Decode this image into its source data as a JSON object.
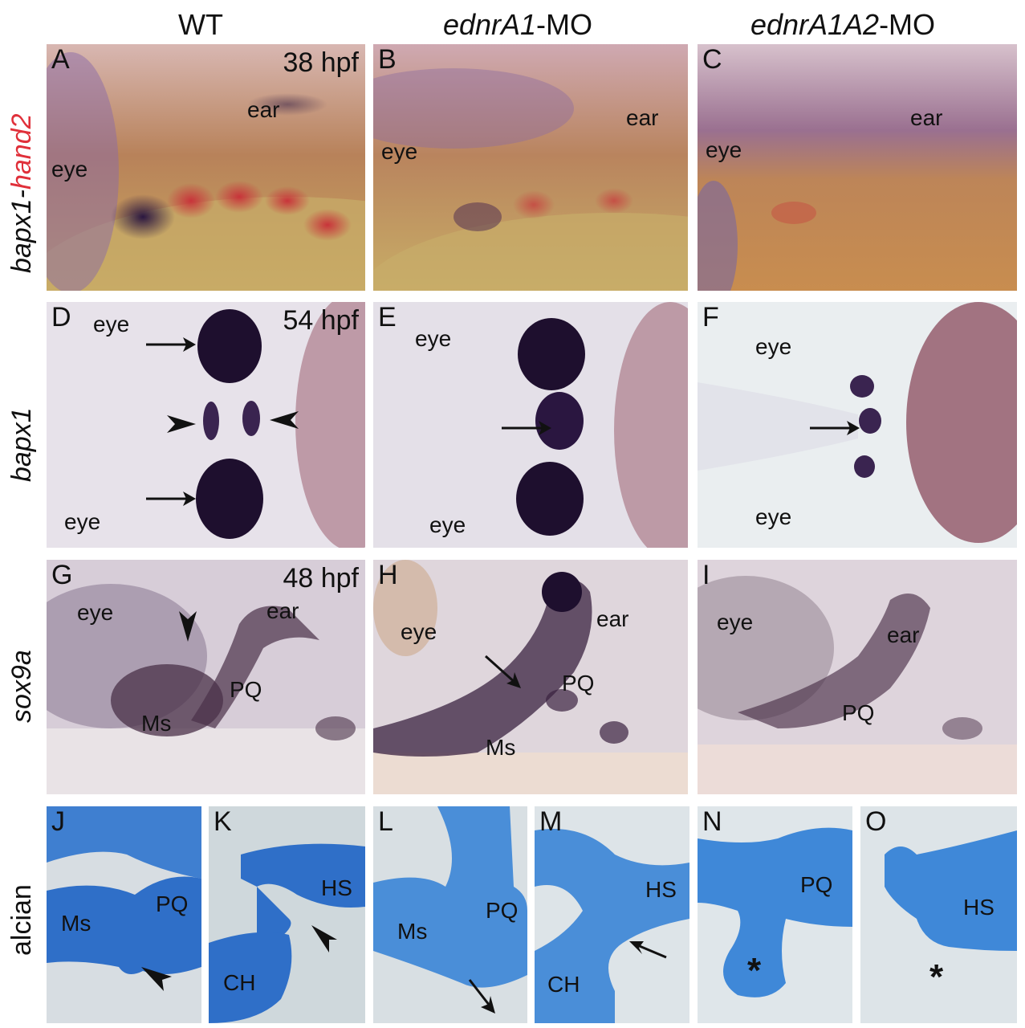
{
  "columns": {
    "wt": "WT",
    "a1_gene": "ednrA1",
    "a1_suffix": "-MO",
    "a1a2_gene": "ednrA1A2",
    "a1a2_suffix": "-MO"
  },
  "rows": {
    "row1_gene1": "bapx1-",
    "row1_gene2": "hand2",
    "row2": "bapx1",
    "row3": "sox9a",
    "row4": "alcian"
  },
  "stages": {
    "row1": "38 hpf",
    "row2": "54 hpf",
    "row3": "48 hpf"
  },
  "panels": {
    "A": {
      "label": "A",
      "eye": "eye",
      "ear": "ear"
    },
    "B": {
      "label": "B",
      "eye": "eye",
      "ear": "ear"
    },
    "C": {
      "label": "C",
      "eye": "eye",
      "ear": "ear"
    },
    "D": {
      "label": "D",
      "eye_top": "eye",
      "eye_bottom": "eye"
    },
    "E": {
      "label": "E",
      "eye_top": "eye",
      "eye_bottom": "eye"
    },
    "F": {
      "label": "F",
      "eye_top": "eye",
      "eye_bottom": "eye"
    },
    "G": {
      "label": "G",
      "eye": "eye",
      "ear": "ear",
      "pq": "PQ",
      "ms": "Ms"
    },
    "H": {
      "label": "H",
      "eye": "eye",
      "ear": "ear",
      "pq": "PQ",
      "ms": "Ms"
    },
    "I": {
      "label": "I",
      "eye": "eye",
      "ear": "ear",
      "pq": "PQ"
    },
    "J": {
      "label": "J",
      "ms": "Ms",
      "pq": "PQ"
    },
    "K": {
      "label": "K",
      "hs": "HS",
      "ch": "CH"
    },
    "L": {
      "label": "L",
      "ms": "Ms",
      "pq": "PQ"
    },
    "M": {
      "label": "M",
      "hs": "HS",
      "ch": "CH"
    },
    "N": {
      "label": "N",
      "pq": "PQ",
      "ast": "*"
    },
    "O": {
      "label": "O",
      "hs": "HS",
      "ast": "*"
    }
  },
  "colors": {
    "embryo_brown": "#b8825a",
    "yolk": "#c9a85e",
    "stain_purple": "#2a1640",
    "stain_red": "#c8343a",
    "alcian_blue": "#3f7fd0",
    "gene_red": "#e0303a"
  }
}
